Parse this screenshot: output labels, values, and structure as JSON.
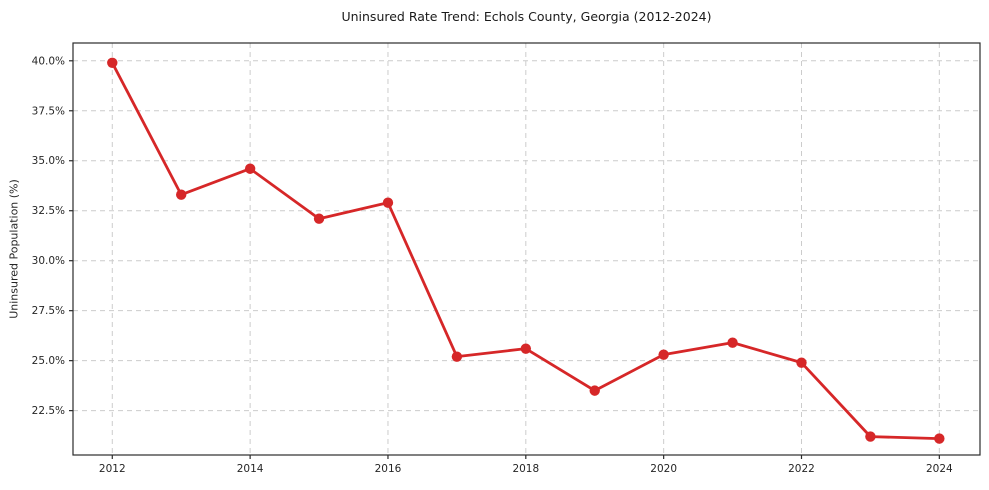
{
  "figure": {
    "title": "Uninsured Rate Trend: Echols County, Georgia (2012-2024)",
    "y_axis_label": "Uninsured Population (%)"
  },
  "chart_data": {
    "type": "line",
    "title": "Uninsured Rate Trend: Echols County, Georgia (2012-2024)",
    "xlabel": "",
    "ylabel": "Uninsured Population (%)",
    "x": [
      2012,
      2013,
      2014,
      2015,
      2016,
      2017,
      2018,
      2019,
      2020,
      2021,
      2022,
      2023,
      2024
    ],
    "values": [
      39.9,
      33.3,
      34.6,
      32.1,
      32.9,
      25.2,
      25.6,
      23.5,
      25.3,
      25.9,
      24.9,
      21.2,
      21.1
    ],
    "x_ticks": [
      2012,
      2014,
      2016,
      2018,
      2020,
      2022,
      2024
    ],
    "x_tick_labels": [
      "2012",
      "2014",
      "2016",
      "2018",
      "2020",
      "2022",
      "2024"
    ],
    "y_ticks": [
      22.5,
      25.0,
      27.5,
      30.0,
      32.5,
      35.0,
      37.5,
      40.0
    ],
    "y_tick_labels": [
      "22.5%",
      "25.0%",
      "27.5%",
      "30.0%",
      "32.5%",
      "35.0%",
      "37.5%",
      "40.0%"
    ],
    "xlim": [
      2011.43,
      2024.59
    ],
    "ylim": [
      20.28,
      40.89
    ],
    "grid": true,
    "grid_style": "dashed",
    "legend": false,
    "line_color": "#d62728",
    "marker": "circle",
    "grid_color": "#cccccc",
    "axis_color": "#2b2b2b",
    "text_color": "#262626",
    "background_color": "#ffffff"
  }
}
